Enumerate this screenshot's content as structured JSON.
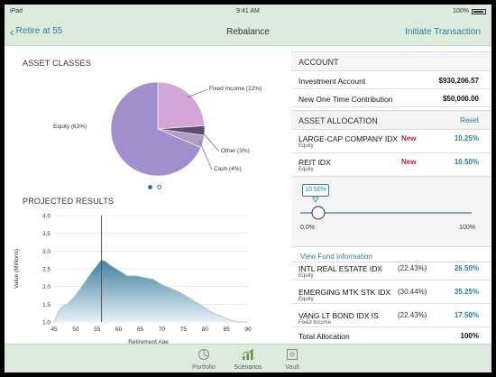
{
  "status": {
    "device": "iPad",
    "time": "9:41 AM",
    "battery": "100%"
  },
  "nav": {
    "back_label": "Retire at 55",
    "title": "Rebalance",
    "action_label": "Initiate Transaction"
  },
  "left": {
    "asset_classes_title": "ASSET CLASSES",
    "projected_title": "PROJECTED RESULTS",
    "page_dots": 2
  },
  "chart_data": [
    {
      "type": "pie",
      "title": "ASSET CLASSES",
      "slices": [
        {
          "label": "Equity (63%)",
          "value": 63,
          "color": "#a08fcc"
        },
        {
          "label": "Fixed Income (22%)",
          "value": 22,
          "color": "#d4a6d6"
        },
        {
          "label": "Other (3%)",
          "value": 3,
          "color": "#5f4d6e"
        },
        {
          "label": "Cash (4%)",
          "value": 4,
          "color": "#b49bc2"
        }
      ]
    },
    {
      "type": "area",
      "title": "PROJECTED RESULTS",
      "xlabel": "Retirement Age",
      "ylabel": "Value (Millions)",
      "xlim": [
        45,
        90
      ],
      "ylim": [
        1.0,
        4.0
      ],
      "xticks": [
        45,
        50,
        55,
        60,
        65,
        70,
        75,
        80,
        85,
        90
      ],
      "yticks": [
        1.0,
        1.5,
        2.0,
        2.5,
        3.0,
        3.5,
        4.0
      ],
      "marker_x": 56,
      "x": [
        45,
        46,
        47,
        48,
        50,
        52,
        54,
        55,
        56,
        57,
        58,
        60,
        62,
        64,
        66,
        68,
        70,
        72,
        74,
        76,
        78,
        80,
        82,
        84,
        86,
        88,
        90
      ],
      "y": [
        1.0,
        1.3,
        1.45,
        1.5,
        1.75,
        2.1,
        2.45,
        2.6,
        2.75,
        2.7,
        2.6,
        2.45,
        2.3,
        2.3,
        2.25,
        2.2,
        2.05,
        1.95,
        1.85,
        1.7,
        1.55,
        1.4,
        1.25,
        1.15,
        1.05,
        1.0,
        1.0
      ]
    }
  ],
  "account": {
    "title": "ACCOUNT",
    "rows": [
      {
        "label": "Investment Account",
        "value": "$930,206.57"
      },
      {
        "label": "New One Time Contribution",
        "value": "$50,000.00"
      }
    ]
  },
  "allocation": {
    "title": "ASSET ALLOCATION",
    "reset_label": "Reset",
    "new_funds": [
      {
        "name": "LARGE-CAP COMPANY IDX",
        "type": "Equity",
        "badge": "New",
        "pct": "10.25%"
      },
      {
        "name": "REIT IDX",
        "type": "Equity",
        "badge": "New",
        "pct": "10.50%"
      }
    ],
    "slider": {
      "value": "10.50%",
      "min_label": "0.0%",
      "max_label": "100%",
      "fraction": 0.105
    },
    "view_fund_label": "View Fund Information",
    "funds": [
      {
        "name": "INTL REAL ESTATE IDX",
        "type": "Equity",
        "old": "(22.43%)",
        "pct": "26.50%"
      },
      {
        "name": "EMERGING MTK STK IDX",
        "type": "Equity",
        "old": "(30.44%)",
        "pct": "35.25%"
      },
      {
        "name": "VANG LT BOND IDX IS",
        "type": "Fixed Income",
        "old": "(22.43%)",
        "pct": "17.50%"
      }
    ],
    "total_label": "Total Allocation",
    "total_value": "100%"
  },
  "tabs": [
    {
      "label": "Portfolio",
      "icon": "pie-icon"
    },
    {
      "label": "Scenarios",
      "icon": "bar-chart-icon"
    },
    {
      "label": "Vault",
      "icon": "vault-icon"
    }
  ],
  "colors": {
    "accent": "#2a7fa3",
    "bar": "#ddebdd",
    "new": "#b02a2a"
  }
}
